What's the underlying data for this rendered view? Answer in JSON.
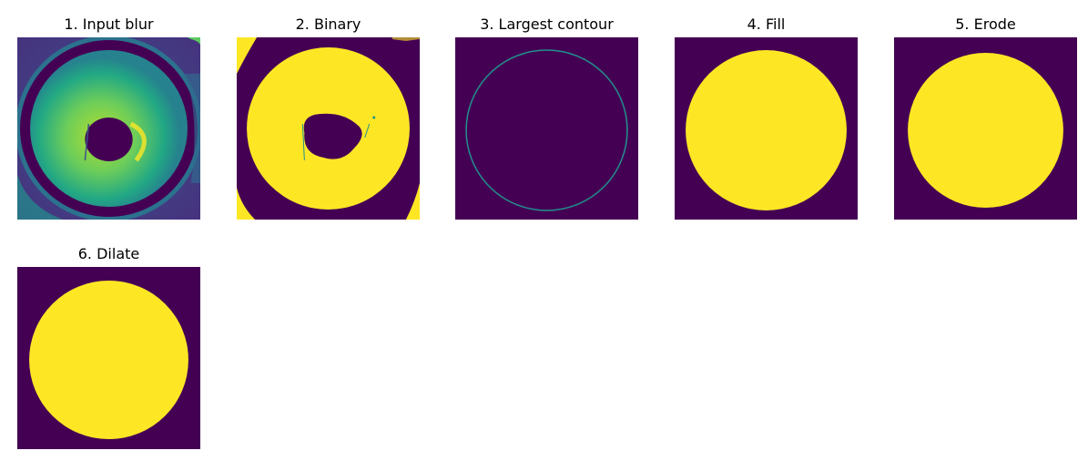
{
  "colors": {
    "background_dark": "#440154",
    "foreground_yellow": "#fde725",
    "contour_teal": "#21918c",
    "mid_green": "#5ec962",
    "mid_teal": "#2a9d8f",
    "deep_blue": "#3b528b"
  },
  "panels": [
    {
      "title": "1. Input blur"
    },
    {
      "title": "2. Binary"
    },
    {
      "title": "3. Largest contour"
    },
    {
      "title": "4. Fill"
    },
    {
      "title": "5. Erode"
    },
    {
      "title": "6. Dilate"
    }
  ]
}
